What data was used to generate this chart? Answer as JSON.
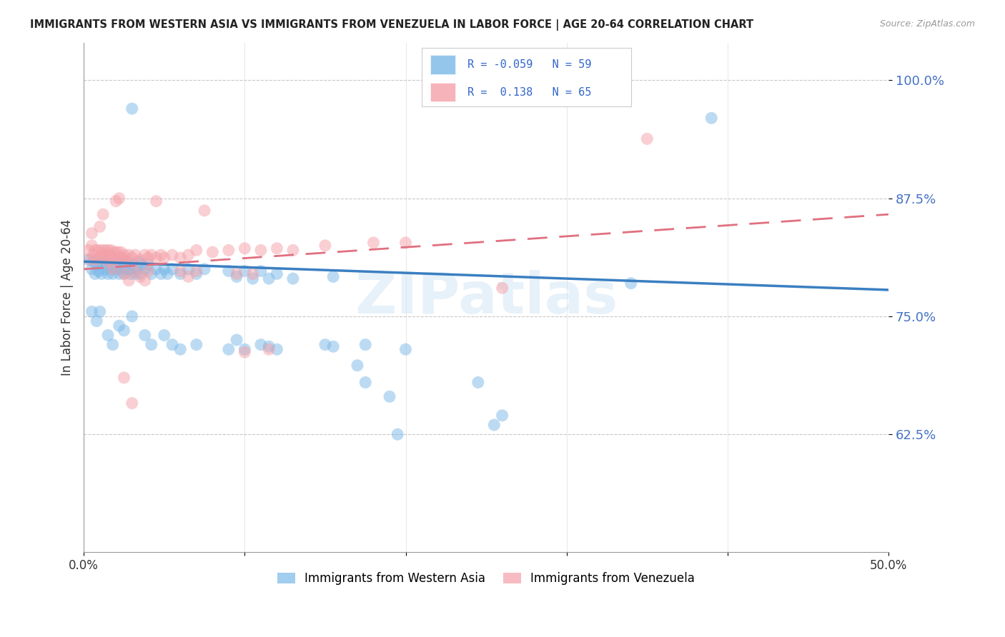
{
  "title": "IMMIGRANTS FROM WESTERN ASIA VS IMMIGRANTS FROM VENEZUELA IN LABOR FORCE | AGE 20-64 CORRELATION CHART",
  "source": "Source: ZipAtlas.com",
  "ylabel": "In Labor Force | Age 20-64",
  "x_min": 0.0,
  "x_max": 0.5,
  "y_min": 0.5,
  "y_max": 1.04,
  "x_ticks": [
    0.0,
    0.1,
    0.2,
    0.3,
    0.4,
    0.5
  ],
  "x_tick_labels": [
    "0.0%",
    "",
    "",
    "",
    "",
    "50.0%"
  ],
  "y_ticks": [
    0.625,
    0.75,
    0.875,
    1.0
  ],
  "y_tick_labels": [
    "62.5%",
    "75.0%",
    "87.5%",
    "100.0%"
  ],
  "legend_label1": "Immigrants from Western Asia",
  "legend_label2": "Immigrants from Venezuela",
  "R1": "-0.059",
  "N1": "59",
  "R2": "0.138",
  "N2": "65",
  "color_blue": "#7ab8e8",
  "color_pink": "#f4a0a8",
  "watermark": "ZIPatlas",
  "blue_scatter": [
    [
      0.003,
      0.81
    ],
    [
      0.005,
      0.8
    ],
    [
      0.006,
      0.808
    ],
    [
      0.007,
      0.795
    ],
    [
      0.008,
      0.805
    ],
    [
      0.009,
      0.798
    ],
    [
      0.01,
      0.808
    ],
    [
      0.011,
      0.795
    ],
    [
      0.012,
      0.805
    ],
    [
      0.013,
      0.8
    ],
    [
      0.014,
      0.808
    ],
    [
      0.015,
      0.795
    ],
    [
      0.016,
      0.805
    ],
    [
      0.017,
      0.8
    ],
    [
      0.018,
      0.795
    ],
    [
      0.019,
      0.805
    ],
    [
      0.02,
      0.8
    ],
    [
      0.021,
      0.808
    ],
    [
      0.022,
      0.795
    ],
    [
      0.023,
      0.8
    ],
    [
      0.024,
      0.808
    ],
    [
      0.025,
      0.795
    ],
    [
      0.026,
      0.8
    ],
    [
      0.027,
      0.808
    ],
    [
      0.028,
      0.8
    ],
    [
      0.029,
      0.795
    ],
    [
      0.03,
      0.805
    ],
    [
      0.032,
      0.795
    ],
    [
      0.033,
      0.8
    ],
    [
      0.034,
      0.808
    ],
    [
      0.035,
      0.795
    ],
    [
      0.036,
      0.805
    ],
    [
      0.038,
      0.8
    ],
    [
      0.04,
      0.805
    ],
    [
      0.042,
      0.795
    ],
    [
      0.045,
      0.8
    ],
    [
      0.048,
      0.795
    ],
    [
      0.05,
      0.8
    ],
    [
      0.052,
      0.795
    ],
    [
      0.055,
      0.8
    ],
    [
      0.06,
      0.795
    ],
    [
      0.065,
      0.8
    ],
    [
      0.07,
      0.795
    ],
    [
      0.075,
      0.8
    ],
    [
      0.09,
      0.798
    ],
    [
      0.095,
      0.792
    ],
    [
      0.1,
      0.798
    ],
    [
      0.105,
      0.79
    ],
    [
      0.11,
      0.798
    ],
    [
      0.115,
      0.79
    ],
    [
      0.12,
      0.795
    ],
    [
      0.13,
      0.79
    ],
    [
      0.155,
      0.792
    ],
    [
      0.03,
      0.97
    ],
    [
      0.39,
      0.96
    ],
    [
      0.005,
      0.755
    ],
    [
      0.008,
      0.745
    ],
    [
      0.01,
      0.755
    ],
    [
      0.015,
      0.73
    ],
    [
      0.018,
      0.72
    ],
    [
      0.022,
      0.74
    ],
    [
      0.025,
      0.735
    ],
    [
      0.03,
      0.75
    ],
    [
      0.038,
      0.73
    ],
    [
      0.042,
      0.72
    ],
    [
      0.05,
      0.73
    ],
    [
      0.055,
      0.72
    ],
    [
      0.06,
      0.715
    ],
    [
      0.07,
      0.72
    ],
    [
      0.09,
      0.715
    ],
    [
      0.095,
      0.725
    ],
    [
      0.1,
      0.715
    ],
    [
      0.11,
      0.72
    ],
    [
      0.115,
      0.718
    ],
    [
      0.12,
      0.715
    ],
    [
      0.15,
      0.72
    ],
    [
      0.155,
      0.718
    ],
    [
      0.17,
      0.698
    ],
    [
      0.175,
      0.68
    ],
    [
      0.19,
      0.665
    ],
    [
      0.2,
      0.715
    ],
    [
      0.245,
      0.68
    ],
    [
      0.255,
      0.635
    ],
    [
      0.26,
      0.645
    ],
    [
      0.175,
      0.72
    ],
    [
      0.34,
      0.785
    ],
    [
      0.195,
      0.625
    ]
  ],
  "pink_scatter": [
    [
      0.003,
      0.82
    ],
    [
      0.004,
      0.81
    ],
    [
      0.005,
      0.825
    ],
    [
      0.006,
      0.815
    ],
    [
      0.007,
      0.82
    ],
    [
      0.008,
      0.81
    ],
    [
      0.009,
      0.82
    ],
    [
      0.01,
      0.812
    ],
    [
      0.011,
      0.82
    ],
    [
      0.012,
      0.815
    ],
    [
      0.013,
      0.82
    ],
    [
      0.014,
      0.812
    ],
    [
      0.015,
      0.82
    ],
    [
      0.016,
      0.815
    ],
    [
      0.017,
      0.82
    ],
    [
      0.018,
      0.812
    ],
    [
      0.019,
      0.818
    ],
    [
      0.02,
      0.81
    ],
    [
      0.021,
      0.818
    ],
    [
      0.022,
      0.812
    ],
    [
      0.023,
      0.818
    ],
    [
      0.024,
      0.812
    ],
    [
      0.025,
      0.815
    ],
    [
      0.026,
      0.81
    ],
    [
      0.028,
      0.815
    ],
    [
      0.03,
      0.812
    ],
    [
      0.032,
      0.815
    ],
    [
      0.035,
      0.81
    ],
    [
      0.038,
      0.815
    ],
    [
      0.04,
      0.812
    ],
    [
      0.042,
      0.815
    ],
    [
      0.045,
      0.812
    ],
    [
      0.048,
      0.815
    ],
    [
      0.05,
      0.812
    ],
    [
      0.055,
      0.815
    ],
    [
      0.06,
      0.812
    ],
    [
      0.065,
      0.815
    ],
    [
      0.07,
      0.82
    ],
    [
      0.08,
      0.818
    ],
    [
      0.09,
      0.82
    ],
    [
      0.1,
      0.822
    ],
    [
      0.11,
      0.82
    ],
    [
      0.12,
      0.822
    ],
    [
      0.13,
      0.82
    ],
    [
      0.15,
      0.825
    ],
    [
      0.18,
      0.828
    ],
    [
      0.2,
      0.828
    ],
    [
      0.35,
      0.938
    ],
    [
      0.01,
      0.845
    ],
    [
      0.012,
      0.858
    ],
    [
      0.02,
      0.872
    ],
    [
      0.022,
      0.875
    ],
    [
      0.045,
      0.872
    ],
    [
      0.075,
      0.862
    ],
    [
      0.005,
      0.838
    ],
    [
      0.015,
      0.808
    ],
    [
      0.018,
      0.8
    ],
    [
      0.025,
      0.795
    ],
    [
      0.028,
      0.788
    ],
    [
      0.032,
      0.798
    ],
    [
      0.035,
      0.792
    ],
    [
      0.038,
      0.788
    ],
    [
      0.04,
      0.798
    ],
    [
      0.06,
      0.798
    ],
    [
      0.065,
      0.792
    ],
    [
      0.07,
      0.798
    ],
    [
      0.095,
      0.795
    ],
    [
      0.105,
      0.795
    ],
    [
      0.025,
      0.685
    ],
    [
      0.03,
      0.658
    ],
    [
      0.1,
      0.712
    ],
    [
      0.115,
      0.715
    ],
    [
      0.26,
      0.78
    ]
  ],
  "blue_line_x": [
    0.0,
    0.5
  ],
  "blue_line_y": [
    0.808,
    0.778
  ],
  "pink_line_x": [
    0.0,
    0.5
  ],
  "pink_line_y": [
    0.8,
    0.858
  ]
}
